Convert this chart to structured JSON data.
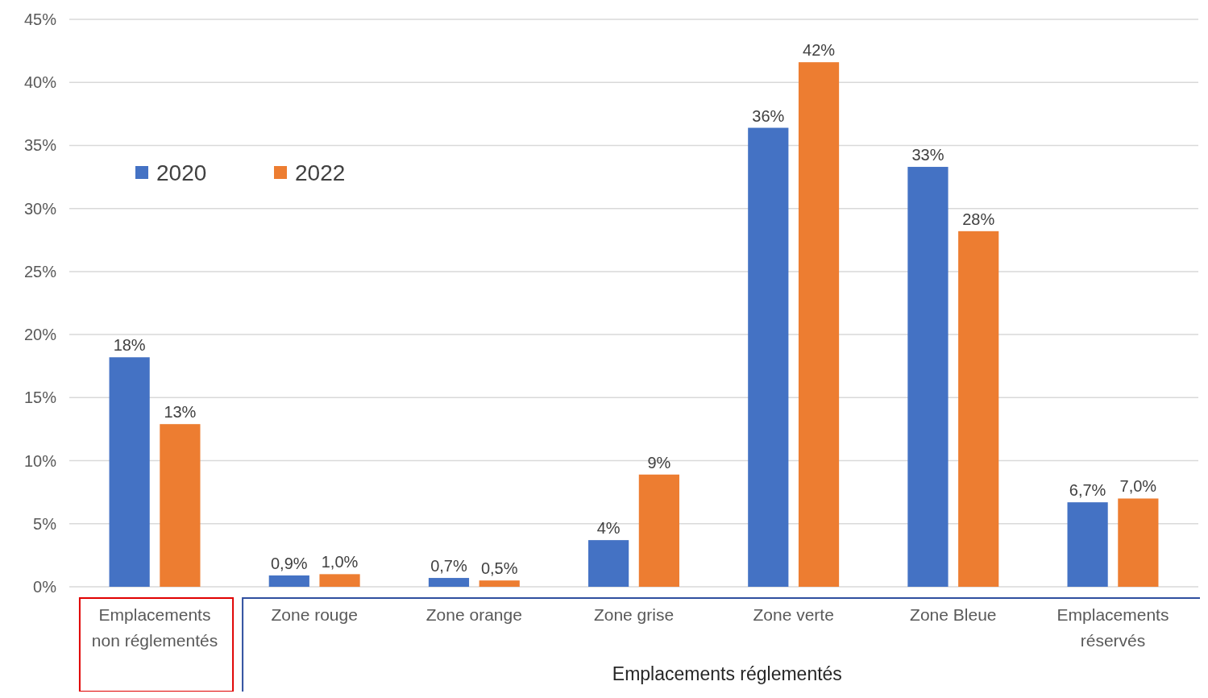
{
  "chart_data": {
    "type": "bar",
    "xlabel": "Emplacements réglementés",
    "categories": [
      "Emplacements non réglementés",
      "Zone rouge",
      "Zone orange",
      "Zone grise",
      "Zone verte",
      "Zone Bleue",
      "Emplacements réservés"
    ],
    "series": [
      {
        "name": "2020",
        "color": "#4472c4",
        "values": [
          18.2,
          0.9,
          0.7,
          3.7,
          36.4,
          33.3,
          6.7
        ],
        "value_labels": [
          "18%",
          "0,9%",
          "0,7%",
          "4%",
          "36%",
          "33%",
          "6,7%"
        ]
      },
      {
        "name": "2022",
        "color": "#ed7d31",
        "values": [
          12.9,
          1.0,
          0.5,
          8.9,
          41.6,
          28.2,
          7.0
        ],
        "value_labels": [
          "13%",
          "1,0%",
          "0,5%",
          "9%",
          "42%",
          "28%",
          "7,0%"
        ]
      }
    ],
    "ylim": [
      0,
      45
    ],
    "yticks": [
      {
        "value": 0,
        "label": "0%"
      },
      {
        "value": 5,
        "label": "5%"
      },
      {
        "value": 10,
        "label": "10%"
      },
      {
        "value": 15,
        "label": "15%"
      },
      {
        "value": 20,
        "label": "20%"
      },
      {
        "value": 25,
        "label": "25%"
      },
      {
        "value": 30,
        "label": "30%"
      },
      {
        "value": 35,
        "label": "35%"
      },
      {
        "value": 40,
        "label": "40%"
      },
      {
        "value": 45,
        "label": "45%"
      }
    ],
    "grid": "y",
    "legend": "top left"
  }
}
